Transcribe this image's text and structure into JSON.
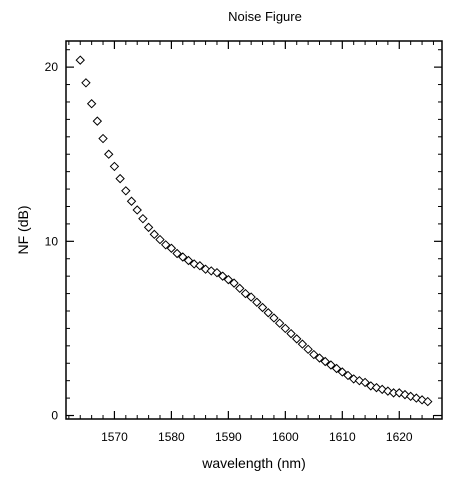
{
  "chart_data": {
    "type": "scatter",
    "title": "Noise Figure",
    "xlabel": "wavelength (nm)",
    "ylabel": "NF (dB)",
    "xlim": [
      1561.5,
      1627.5
    ],
    "ylim": [
      -0.2,
      21.5
    ],
    "x_ticks": [
      1570,
      1580,
      1590,
      1600,
      1610,
      1620
    ],
    "x_tick_labels": [
      "1570",
      "1580",
      "1590",
      "1600",
      "1610",
      "1620"
    ],
    "y_ticks": [
      0,
      10,
      20
    ],
    "y_tick_labels": [
      "0",
      "10",
      "20"
    ],
    "grid": false,
    "marker": "diamond-open",
    "marker_color": "#000000",
    "series": [
      {
        "x": [
          1564.0,
          1565.0,
          1566.0,
          1567.0,
          1568.0,
          1569.0,
          1570.0,
          1571.0,
          1572.0,
          1573.0,
          1574.0,
          1575.0,
          1576.0,
          1577.0,
          1578.0,
          1579.0,
          1580.0,
          1581.0,
          1582.0,
          1583.0,
          1584.0,
          1585.0,
          1586.0,
          1587.0,
          1588.0,
          1589.0,
          1590.0,
          1591.0,
          1592.0,
          1593.0,
          1594.0,
          1595.0,
          1596.0,
          1597.0,
          1598.0,
          1599.0,
          1600.0,
          1601.0,
          1602.0,
          1603.0,
          1604.0,
          1605.0,
          1606.0,
          1607.0,
          1608.0,
          1609.0,
          1610.0,
          1611.0,
          1612.0,
          1613.0,
          1614.0,
          1615.0,
          1616.0,
          1617.0,
          1618.0,
          1619.0,
          1620.0,
          1621.0,
          1622.0,
          1623.0,
          1624.0,
          1625.0
        ],
        "y": [
          20.4,
          19.1,
          17.9,
          16.9,
          15.9,
          15.0,
          14.3,
          13.6,
          12.9,
          12.3,
          11.8,
          11.3,
          10.8,
          10.4,
          10.1,
          9.8,
          9.6,
          9.3,
          9.1,
          8.9,
          8.7,
          8.6,
          8.4,
          8.3,
          8.2,
          8.0,
          7.8,
          7.6,
          7.3,
          7.0,
          6.8,
          6.5,
          6.2,
          5.9,
          5.6,
          5.3,
          5.0,
          4.7,
          4.4,
          4.1,
          3.8,
          3.5,
          3.3,
          3.1,
          2.9,
          2.7,
          2.5,
          2.3,
          2.1,
          2.0,
          1.9,
          1.7,
          1.6,
          1.5,
          1.4,
          1.3,
          1.3,
          1.2,
          1.1,
          1.0,
          0.9,
          0.8
        ]
      }
    ]
  }
}
